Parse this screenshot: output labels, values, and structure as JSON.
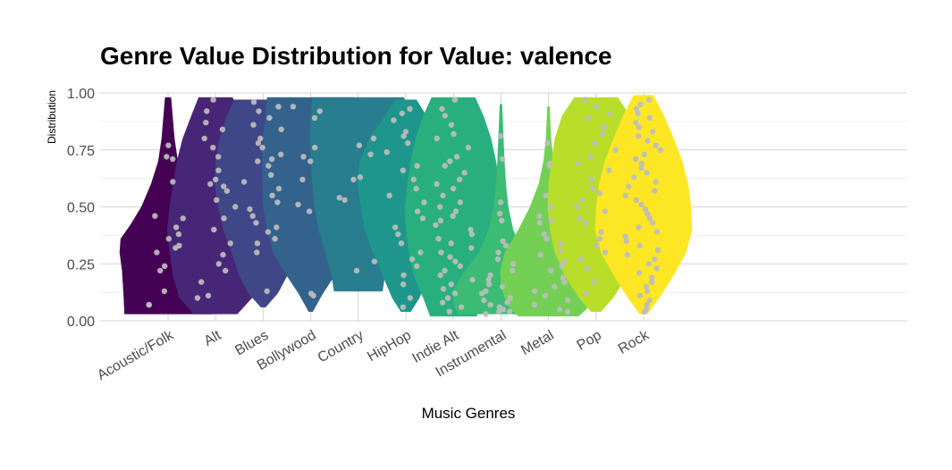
{
  "chart_data": {
    "type": "violin",
    "title": "Genre Value Distribution for Value:  valence",
    "xlabel": "Music Genres",
    "ylabel": "Distribution",
    "ylim": [
      0,
      1
    ],
    "yticks": [
      "0.00",
      "0.25",
      "0.50",
      "0.75",
      "1.00"
    ],
    "grid": true,
    "legend": "none",
    "point_color": "#bdbdbd",
    "categories": [
      "Acoustic/Folk",
      "Alt",
      "Blues",
      "Bollywood",
      "Country",
      "HipHop",
      "Indie Alt",
      "Instrumental",
      "Metal",
      "Pop",
      "Rock"
    ],
    "series": [
      {
        "category": "Acoustic/Folk",
        "color": "#440154",
        "min": 0.03,
        "max": 0.98,
        "density": [
          [
            0.03,
            0.9
          ],
          [
            0.12,
            0.92
          ],
          [
            0.22,
            0.95
          ],
          [
            0.3,
            1.0
          ],
          [
            0.36,
            0.98
          ],
          [
            0.42,
            0.78
          ],
          [
            0.5,
            0.55
          ],
          [
            0.6,
            0.35
          ],
          [
            0.7,
            0.2
          ],
          [
            0.8,
            0.13
          ],
          [
            0.9,
            0.09
          ],
          [
            0.98,
            0.06
          ]
        ],
        "points": [
          0.77,
          0.72,
          0.71,
          0.61,
          0.46,
          0.45,
          0.41,
          0.38,
          0.36,
          0.33,
          0.32,
          0.3,
          0.24,
          0.22,
          0.13,
          0.07,
          0.07
        ]
      },
      {
        "category": "Alt",
        "color": "#482677",
        "min": 0.03,
        "max": 0.98,
        "density": [
          [
            0.03,
            0.45
          ],
          [
            0.1,
            0.75
          ],
          [
            0.2,
            0.88
          ],
          [
            0.3,
            0.95
          ],
          [
            0.4,
            1.0
          ],
          [
            0.5,
            0.95
          ],
          [
            0.6,
            0.88
          ],
          [
            0.7,
            0.8
          ],
          [
            0.8,
            0.68
          ],
          [
            0.9,
            0.5
          ],
          [
            0.98,
            0.35
          ]
        ],
        "points": [
          0.97,
          0.92,
          0.87,
          0.84,
          0.8,
          0.76,
          0.72,
          0.66,
          0.62,
          0.6,
          0.59,
          0.57,
          0.53,
          0.5,
          0.45,
          0.4,
          0.34,
          0.29,
          0.25,
          0.22,
          0.17,
          0.11,
          0.1
        ]
      },
      {
        "category": "Blues",
        "color": "#404788",
        "min": 0.06,
        "max": 0.97,
        "density": [
          [
            0.06,
            0.05
          ],
          [
            0.12,
            0.3
          ],
          [
            0.2,
            0.5
          ],
          [
            0.3,
            0.65
          ],
          [
            0.4,
            0.82
          ],
          [
            0.5,
            0.93
          ],
          [
            0.6,
            1.0
          ],
          [
            0.7,
            0.98
          ],
          [
            0.8,
            0.9
          ],
          [
            0.9,
            0.75
          ],
          [
            0.97,
            0.6
          ]
        ],
        "points": [
          0.96,
          0.94,
          0.92,
          0.89,
          0.86,
          0.84,
          0.8,
          0.78,
          0.76,
          0.73,
          0.71,
          0.7,
          0.68,
          0.64,
          0.61,
          0.58,
          0.55,
          0.52,
          0.49,
          0.46,
          0.43,
          0.41,
          0.39,
          0.36,
          0.34,
          0.3,
          0.13
        ]
      },
      {
        "category": "Bollywood",
        "color": "#33638D",
        "min": 0.04,
        "max": 0.98,
        "density": [
          [
            0.04,
            0.04
          ],
          [
            0.12,
            0.25
          ],
          [
            0.2,
            0.5
          ],
          [
            0.3,
            0.78
          ],
          [
            0.4,
            0.9
          ],
          [
            0.5,
            0.98
          ],
          [
            0.6,
            1.0
          ],
          [
            0.7,
            1.0
          ],
          [
            0.8,
            0.98
          ],
          [
            0.9,
            0.93
          ],
          [
            0.98,
            0.9
          ]
        ],
        "points": [
          0.94,
          0.92,
          0.89,
          0.76,
          0.72,
          0.7,
          0.62,
          0.51,
          0.48,
          0.12,
          0.11
        ]
      },
      {
        "category": "Country",
        "color": "#287D8E",
        "min": 0.13,
        "max": 0.98,
        "density": [
          [
            0.13,
            0.5
          ],
          [
            0.2,
            0.55
          ],
          [
            0.3,
            0.68
          ],
          [
            0.4,
            0.82
          ],
          [
            0.5,
            0.9
          ],
          [
            0.6,
            0.95
          ],
          [
            0.7,
            0.98
          ],
          [
            0.8,
            1.0
          ],
          [
            0.9,
            0.98
          ],
          [
            0.98,
            0.95
          ]
        ],
        "points": [
          0.8,
          0.77,
          0.73,
          0.63,
          0.62,
          0.54,
          0.53,
          0.26,
          0.22
        ]
      },
      {
        "category": "HipHop",
        "color": "#1F968B",
        "min": 0.04,
        "max": 0.97,
        "density": [
          [
            0.04,
            0.1
          ],
          [
            0.1,
            0.28
          ],
          [
            0.2,
            0.48
          ],
          [
            0.3,
            0.68
          ],
          [
            0.4,
            0.85
          ],
          [
            0.5,
            0.93
          ],
          [
            0.6,
            1.0
          ],
          [
            0.7,
            0.95
          ],
          [
            0.8,
            0.75
          ],
          [
            0.9,
            0.42
          ],
          [
            0.97,
            0.22
          ]
        ],
        "points": [
          0.93,
          0.91,
          0.88,
          0.83,
          0.81,
          0.78,
          0.74,
          0.68,
          0.66,
          0.62,
          0.58,
          0.55,
          0.52,
          0.48,
          0.45,
          0.41,
          0.38,
          0.34,
          0.3,
          0.27,
          0.24,
          0.2,
          0.16,
          0.1,
          0.06
        ]
      },
      {
        "category": "Indie Alt",
        "color": "#29AF7F",
        "min": 0.02,
        "max": 0.98,
        "density": [
          [
            0.02,
            0.48
          ],
          [
            0.1,
            0.62
          ],
          [
            0.2,
            0.82
          ],
          [
            0.3,
            0.92
          ],
          [
            0.4,
            0.98
          ],
          [
            0.5,
            1.0
          ],
          [
            0.6,
            0.95
          ],
          [
            0.7,
            0.88
          ],
          [
            0.8,
            0.78
          ],
          [
            0.9,
            0.62
          ],
          [
            0.98,
            0.45
          ]
        ],
        "points": [
          0.97,
          0.93,
          0.9,
          0.86,
          0.82,
          0.8,
          0.76,
          0.72,
          0.7,
          0.68,
          0.65,
          0.62,
          0.6,
          0.58,
          0.55,
          0.52,
          0.5,
          0.48,
          0.46,
          0.44,
          0.42,
          0.4,
          0.38,
          0.36,
          0.34,
          0.32,
          0.3,
          0.28,
          0.26,
          0.24,
          0.22,
          0.2,
          0.18,
          0.16,
          0.14,
          0.12,
          0.1,
          0.08,
          0.06,
          0.04
        ]
      },
      {
        "category": "Instrumental",
        "color": "#3CBB75",
        "min": 0.03,
        "max": 0.95,
        "density": [
          [
            0.03,
            0.9
          ],
          [
            0.08,
            0.98
          ],
          [
            0.13,
            1.0
          ],
          [
            0.2,
            0.8
          ],
          [
            0.3,
            0.45
          ],
          [
            0.4,
            0.25
          ],
          [
            0.5,
            0.15
          ],
          [
            0.6,
            0.1
          ],
          [
            0.7,
            0.07
          ],
          [
            0.8,
            0.05
          ],
          [
            0.95,
            0.02
          ]
        ],
        "points": [
          0.81,
          0.71,
          0.52,
          0.47,
          0.44,
          0.35,
          0.33,
          0.3,
          0.27,
          0.25,
          0.22,
          0.2,
          0.18,
          0.16,
          0.15,
          0.13,
          0.12,
          0.1,
          0.09,
          0.08,
          0.07,
          0.06,
          0.05,
          0.04,
          0.04,
          0.03
        ]
      },
      {
        "category": "Metal",
        "color": "#73D055",
        "min": 0.02,
        "max": 0.94,
        "density": [
          [
            0.02,
            0.62
          ],
          [
            0.05,
            0.78
          ],
          [
            0.1,
            0.9
          ],
          [
            0.15,
            0.98
          ],
          [
            0.22,
            1.0
          ],
          [
            0.3,
            0.9
          ],
          [
            0.4,
            0.62
          ],
          [
            0.5,
            0.38
          ],
          [
            0.6,
            0.2
          ],
          [
            0.7,
            0.1
          ],
          [
            0.8,
            0.05
          ],
          [
            0.94,
            0.02
          ]
        ],
        "points": [
          0.78,
          0.69,
          0.68,
          0.55,
          0.5,
          0.46,
          0.44,
          0.43,
          0.38,
          0.36,
          0.34,
          0.31,
          0.29,
          0.26,
          0.24,
          0.22,
          0.19,
          0.17,
          0.15,
          0.13,
          0.11,
          0.09,
          0.07,
          0.05,
          0.04
        ]
      },
      {
        "category": "Pop",
        "color": "#B8DE29",
        "min": 0.04,
        "max": 0.98,
        "density": [
          [
            0.04,
            0.1
          ],
          [
            0.1,
            0.35
          ],
          [
            0.2,
            0.65
          ],
          [
            0.3,
            0.85
          ],
          [
            0.4,
            0.95
          ],
          [
            0.5,
            1.0
          ],
          [
            0.6,
            0.98
          ],
          [
            0.7,
            0.92
          ],
          [
            0.8,
            0.85
          ],
          [
            0.9,
            0.7
          ],
          [
            0.98,
            0.45
          ]
        ],
        "points": [
          0.97,
          0.94,
          0.91,
          0.89,
          0.85,
          0.82,
          0.78,
          0.75,
          0.72,
          0.69,
          0.66,
          0.62,
          0.58,
          0.56,
          0.53,
          0.5,
          0.48,
          0.45,
          0.43,
          0.39,
          0.36,
          0.33,
          0.3,
          0.27,
          0.23,
          0.17,
          0.12
        ]
      },
      {
        "category": "Rock",
        "color": "#FDE725",
        "min": 0.03,
        "max": 0.99,
        "density": [
          [
            0.03,
            0.08
          ],
          [
            0.1,
            0.32
          ],
          [
            0.2,
            0.62
          ],
          [
            0.3,
            0.88
          ],
          [
            0.4,
            1.0
          ],
          [
            0.5,
            0.98
          ],
          [
            0.6,
            0.92
          ],
          [
            0.7,
            0.8
          ],
          [
            0.8,
            0.62
          ],
          [
            0.9,
            0.42
          ],
          [
            0.99,
            0.2
          ]
        ],
        "points": [
          0.97,
          0.95,
          0.93,
          0.91,
          0.89,
          0.87,
          0.85,
          0.83,
          0.81,
          0.79,
          0.77,
          0.75,
          0.73,
          0.71,
          0.69,
          0.67,
          0.65,
          0.63,
          0.61,
          0.59,
          0.57,
          0.55,
          0.53,
          0.51,
          0.49,
          0.47,
          0.45,
          0.43,
          0.41,
          0.39,
          0.37,
          0.35,
          0.33,
          0.31,
          0.29,
          0.27,
          0.25,
          0.23,
          0.21,
          0.19,
          0.17,
          0.15,
          0.13,
          0.11,
          0.09,
          0.07,
          0.05,
          0.04
        ]
      }
    ]
  }
}
